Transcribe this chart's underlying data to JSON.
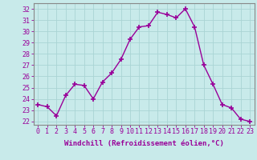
{
  "x": [
    0,
    1,
    2,
    3,
    4,
    5,
    6,
    7,
    8,
    9,
    10,
    11,
    12,
    13,
    14,
    15,
    16,
    17,
    18,
    19,
    20,
    21,
    22,
    23
  ],
  "y": [
    23.5,
    23.3,
    22.5,
    24.3,
    25.3,
    25.2,
    24.0,
    25.5,
    26.3,
    27.5,
    29.3,
    30.4,
    30.5,
    31.7,
    31.5,
    31.2,
    32.0,
    30.4,
    27.0,
    25.3,
    23.5,
    23.2,
    22.2,
    22.0
  ],
  "line_color": "#990099",
  "marker": "+",
  "marker_size": 4,
  "linewidth": 1.0,
  "xlabel": "Windchill (Refroidissement éolien,°C)",
  "xlabel_fontsize": 6.5,
  "background_color": "#c8eaea",
  "grid_color": "#aad4d4",
  "ylim": [
    21.7,
    32.5
  ],
  "xlim": [
    -0.5,
    23.5
  ],
  "yticks": [
    22,
    23,
    24,
    25,
    26,
    27,
    28,
    29,
    30,
    31,
    32
  ],
  "xticks": [
    0,
    1,
    2,
    3,
    4,
    5,
    6,
    7,
    8,
    9,
    10,
    11,
    12,
    13,
    14,
    15,
    16,
    17,
    18,
    19,
    20,
    21,
    22,
    23
  ],
  "tick_fontsize": 6.0,
  "tick_color": "#990099",
  "spine_color": "#888888"
}
